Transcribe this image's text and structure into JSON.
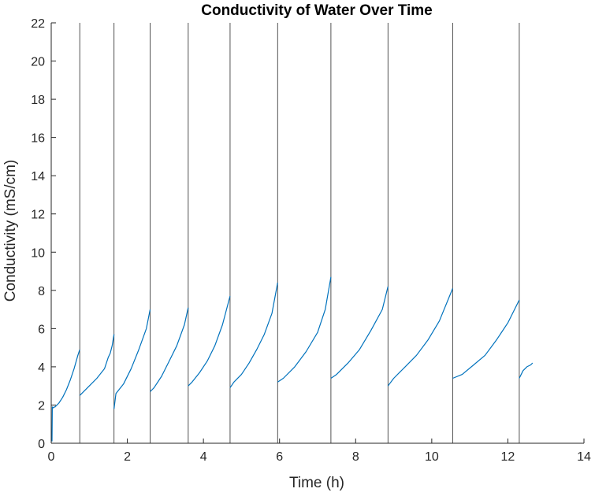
{
  "chart_data": {
    "type": "line",
    "title": "Conductivity of Water Over Time",
    "xlabel": "Time (h)",
    "ylabel": "Conductivity (mS/cm)",
    "xlim": [
      0,
      14
    ],
    "ylim": [
      0,
      22
    ],
    "xticks": [
      0,
      2,
      4,
      6,
      8,
      10,
      12,
      14
    ],
    "yticks": [
      0,
      2,
      4,
      6,
      8,
      10,
      12,
      14,
      16,
      18,
      20,
      22
    ],
    "grid": false,
    "vertical_markers": [
      0.75,
      1.65,
      2.6,
      3.6,
      4.7,
      5.95,
      7.35,
      8.85,
      10.55,
      12.3
    ],
    "series": [
      {
        "name": "",
        "color": "#0072BD",
        "segments": [
          {
            "x": [
              0.02,
              0.03,
              0.05,
              0.08,
              0.1,
              0.2,
              0.3,
              0.4,
              0.5,
              0.6,
              0.7,
              0.75
            ],
            "y": [
              0.1,
              1.9,
              1.85,
              1.9,
              1.9,
              2.1,
              2.4,
              2.8,
              3.3,
              3.9,
              4.6,
              4.9
            ]
          },
          {
            "x": [
              0.75,
              0.8,
              1.0,
              1.2,
              1.4,
              1.5,
              1.55,
              1.6,
              1.65
            ],
            "y": [
              2.5,
              2.6,
              3.0,
              3.4,
              3.9,
              4.5,
              4.7,
              5.1,
              5.7
            ]
          },
          {
            "x": [
              1.65,
              1.7,
              1.9,
              2.1,
              2.3,
              2.5,
              2.6
            ],
            "y": [
              1.8,
              2.6,
              3.1,
              3.9,
              4.9,
              6.0,
              7.0
            ]
          },
          {
            "x": [
              2.6,
              2.7,
              2.9,
              3.1,
              3.3,
              3.5,
              3.6
            ],
            "y": [
              2.7,
              2.9,
              3.5,
              4.3,
              5.1,
              6.2,
              7.1
            ]
          },
          {
            "x": [
              3.6,
              3.7,
              3.9,
              4.1,
              4.3,
              4.5,
              4.7
            ],
            "y": [
              3.0,
              3.2,
              3.7,
              4.3,
              5.1,
              6.2,
              7.7
            ]
          },
          {
            "x": [
              4.7,
              4.8,
              5.0,
              5.2,
              5.4,
              5.6,
              5.8,
              5.95
            ],
            "y": [
              2.9,
              3.2,
              3.6,
              4.2,
              4.9,
              5.7,
              6.8,
              8.4
            ]
          },
          {
            "x": [
              5.95,
              6.1,
              6.4,
              6.7,
              7.0,
              7.2,
              7.35
            ],
            "y": [
              3.2,
              3.4,
              4.0,
              4.8,
              5.8,
              7.0,
              8.7
            ]
          },
          {
            "x": [
              7.35,
              7.5,
              7.8,
              8.1,
              8.4,
              8.7,
              8.85
            ],
            "y": [
              3.4,
              3.6,
              4.2,
              4.9,
              5.9,
              7.0,
              8.2
            ]
          },
          {
            "x": [
              8.85,
              9.0,
              9.3,
              9.6,
              9.9,
              10.2,
              10.55
            ],
            "y": [
              3.0,
              3.4,
              4.0,
              4.6,
              5.4,
              6.4,
              8.1
            ]
          },
          {
            "x": [
              10.55,
              10.8,
              11.1,
              11.4,
              11.7,
              12.0,
              12.3
            ],
            "y": [
              3.4,
              3.6,
              4.1,
              4.6,
              5.4,
              6.3,
              7.5
            ]
          },
          {
            "x": [
              12.3,
              12.4,
              12.5,
              12.6,
              12.65
            ],
            "y": [
              3.4,
              3.8,
              4.0,
              4.1,
              4.2
            ]
          }
        ]
      }
    ]
  }
}
